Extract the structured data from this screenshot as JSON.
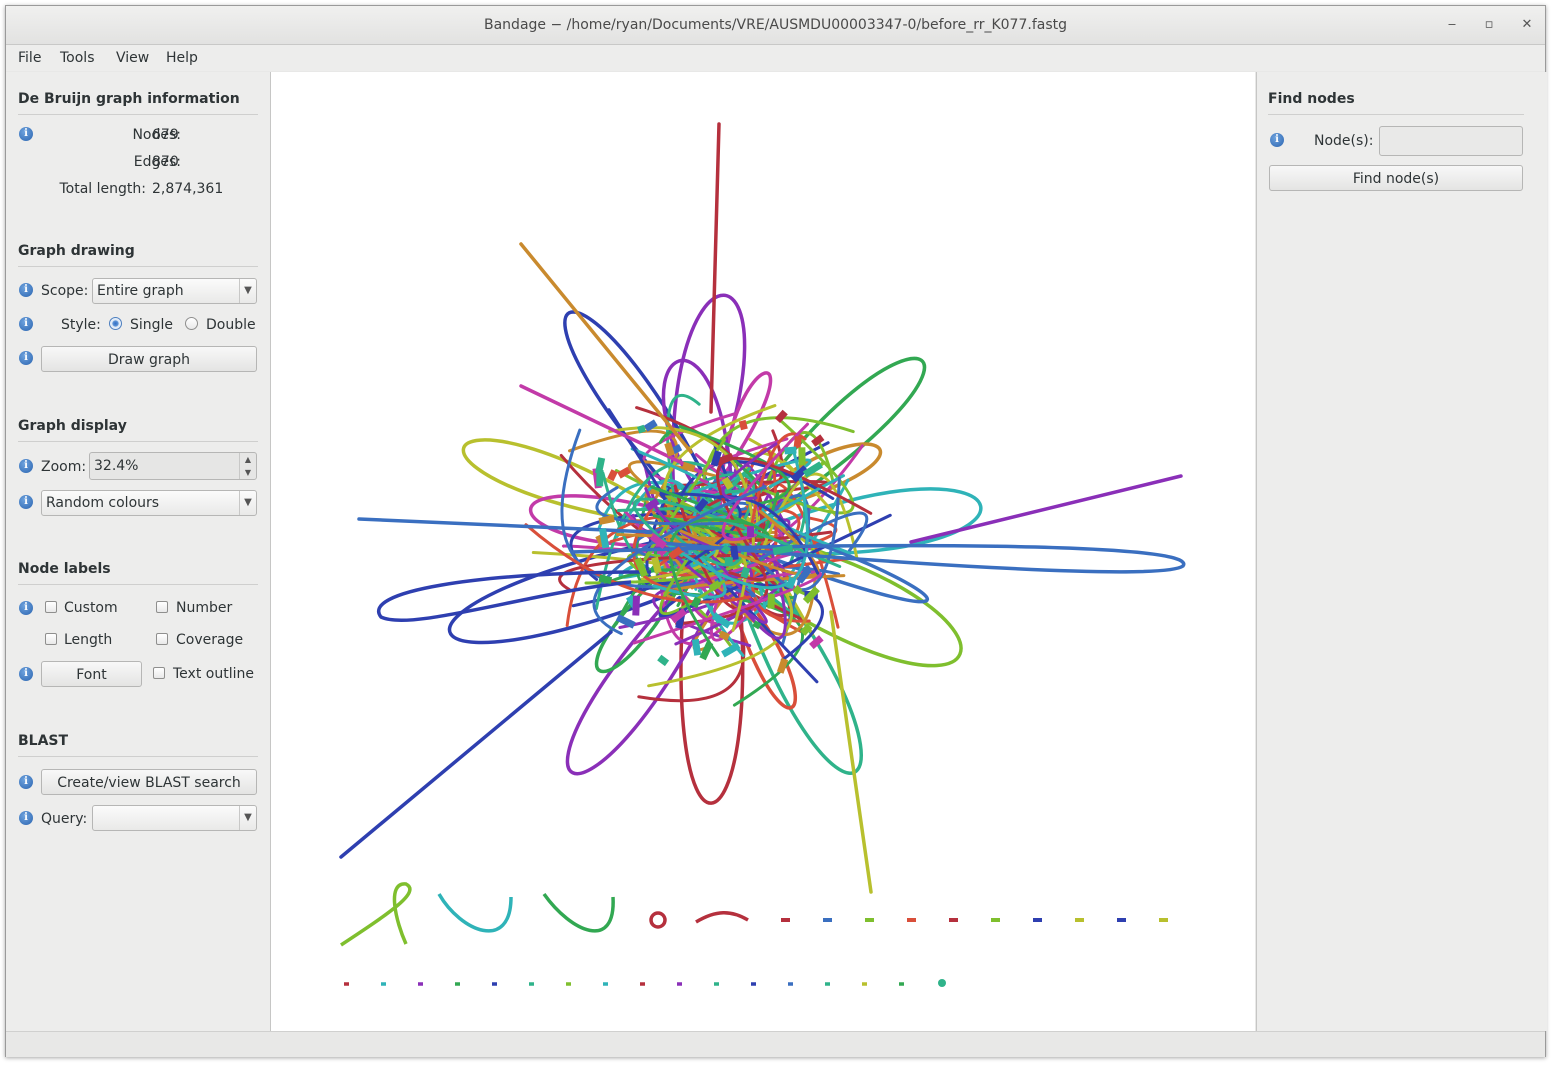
{
  "window": {
    "title": "Bandage − /home/ryan/Documents/VRE/AUSMDU00003347-0/before_rr_K077.fastg"
  },
  "menu": [
    "File",
    "Tools",
    "View",
    "Help"
  ],
  "graph_info": {
    "heading": "De Bruijn graph information",
    "nodes_label": "Nodes:",
    "nodes_value": "679",
    "edges_label": "Edges:",
    "edges_value": "870",
    "length_label": "Total length:",
    "length_value": "2,874,361"
  },
  "graph_drawing": {
    "heading": "Graph drawing",
    "scope_label": "Scope:",
    "scope_value": "Entire graph",
    "style_label": "Style:",
    "style_single": "Single",
    "style_double": "Double",
    "style_selected": "Single",
    "draw_button": "Draw graph"
  },
  "graph_display": {
    "heading": "Graph display",
    "zoom_label": "Zoom:",
    "zoom_value": "32.4%",
    "colour_scheme": "Random colours"
  },
  "node_labels": {
    "heading": "Node labels",
    "custom": "Custom",
    "number": "Number",
    "length": "Length",
    "coverage": "Coverage",
    "font_button": "Font",
    "text_outline": "Text outline"
  },
  "blast": {
    "heading": "BLAST",
    "search_button": "Create/view BLAST search",
    "query_label": "Query:",
    "query_value": ""
  },
  "find_nodes": {
    "heading": "Find nodes",
    "nodes_label": "Node(s):",
    "nodes_value": "",
    "find_button": "Find node(s)"
  },
  "palette": [
    "#2e3fb0",
    "#32a852",
    "#b5303d",
    "#8a2fb8",
    "#3a6fc0",
    "#2fb3b8",
    "#b8c02e",
    "#c23aa8",
    "#7fbf2e",
    "#c98a2e",
    "#2fb38a",
    "#d94f3a"
  ]
}
